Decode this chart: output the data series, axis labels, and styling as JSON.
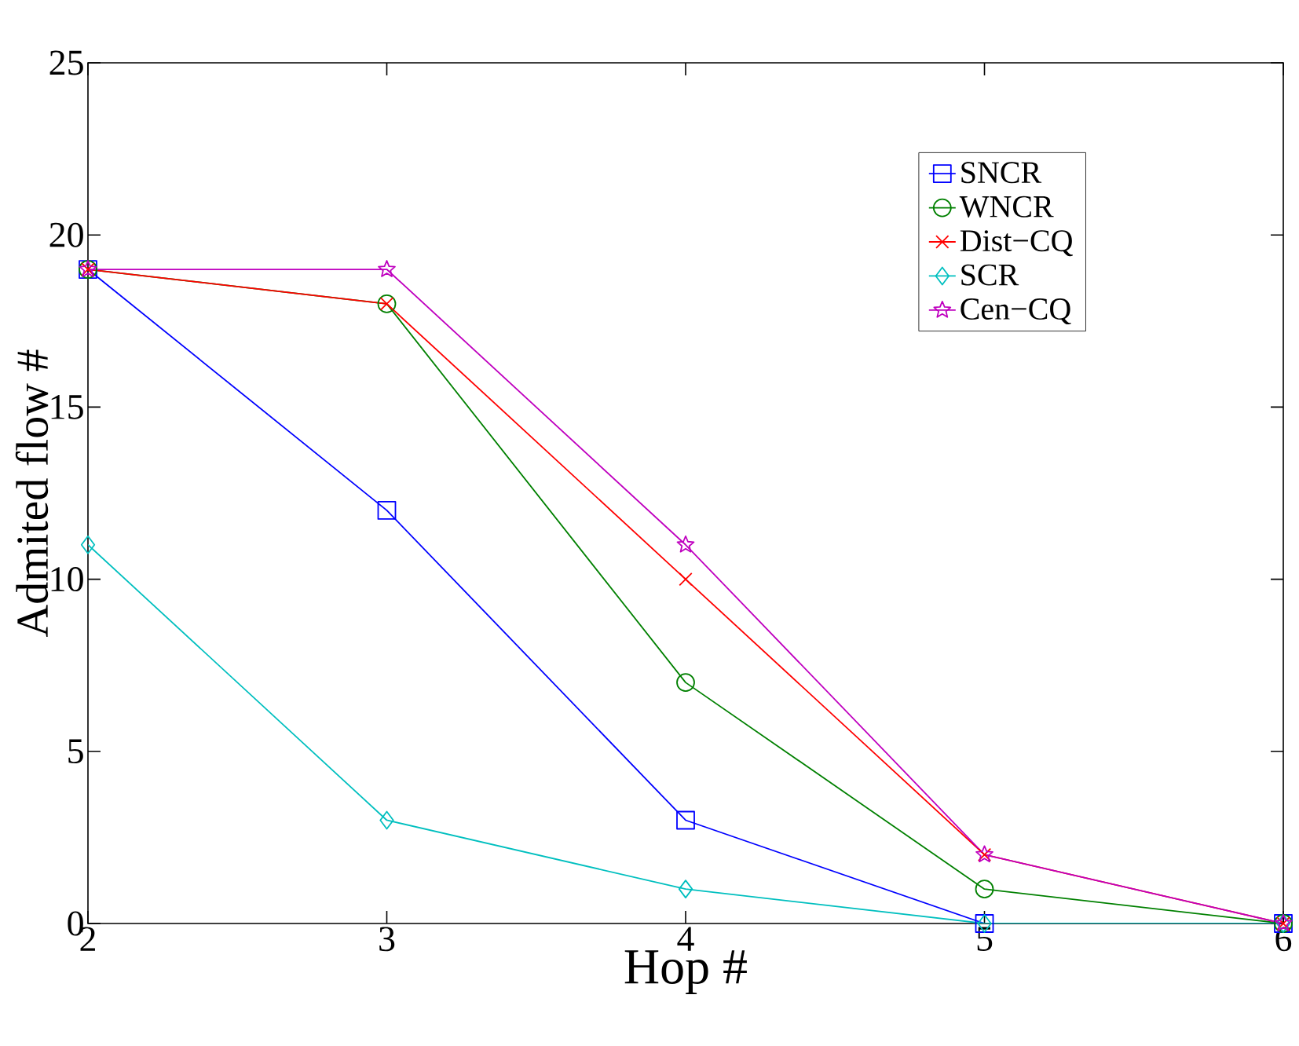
{
  "chart_data": {
    "type": "line",
    "xlabel": "Hop #",
    "ylabel": "Admited flow #",
    "x": [
      2,
      3,
      4,
      5,
      6
    ],
    "series": [
      {
        "name": "SNCR",
        "color": "#0000ff",
        "marker": "square",
        "values": [
          19,
          12,
          3,
          0,
          0
        ]
      },
      {
        "name": "WNCR",
        "color": "#008000",
        "marker": "circle",
        "values": [
          19,
          18,
          7,
          1,
          0
        ]
      },
      {
        "name": "Dist−CQ",
        "color": "#ff0000",
        "marker": "cross",
        "values": [
          19,
          18,
          10,
          2,
          0
        ]
      },
      {
        "name": "SCR",
        "color": "#00bfbf",
        "marker": "diamond",
        "values": [
          11,
          3,
          1,
          0,
          0
        ]
      },
      {
        "name": "Cen−CQ",
        "color": "#bf00bf",
        "marker": "star",
        "values": [
          19,
          19,
          11,
          2,
          0
        ]
      }
    ],
    "xlim": [
      2,
      6
    ],
    "xticks": [
      2,
      3,
      4,
      5,
      6
    ],
    "ylim": [
      0,
      25
    ],
    "yticks": [
      0,
      5,
      10,
      15,
      20,
      25
    ],
    "legend": "top right",
    "grid": false,
    "line_style": "solid"
  }
}
